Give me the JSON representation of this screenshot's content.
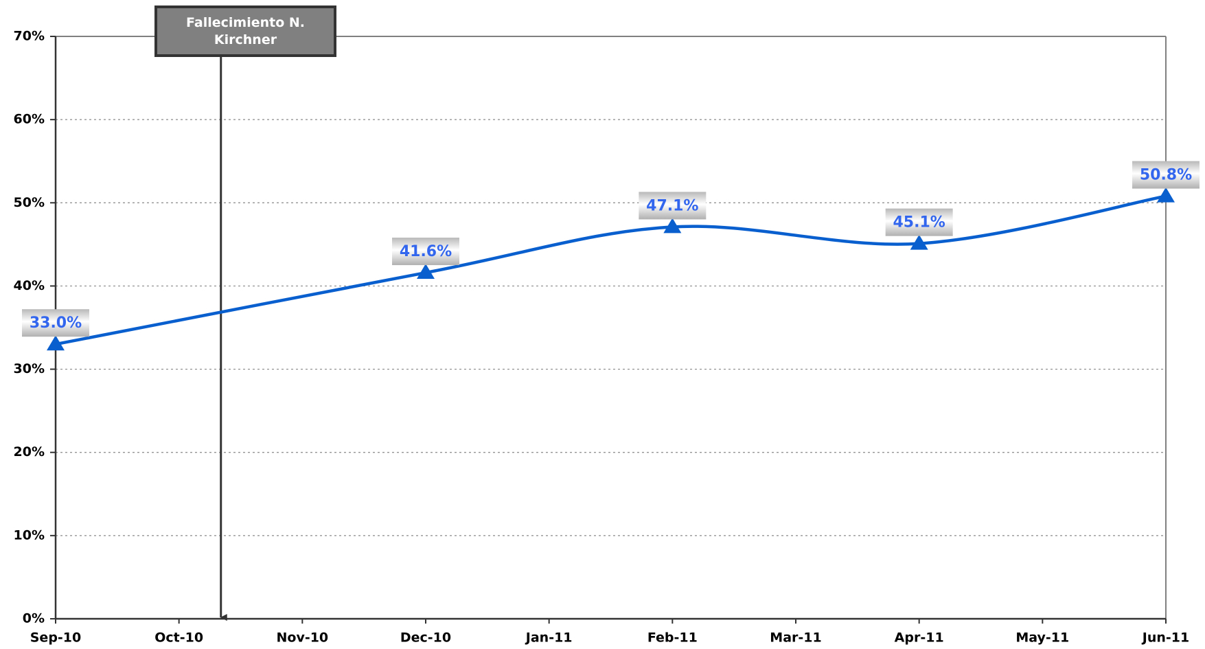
{
  "chart_data": {
    "type": "line",
    "categories": [
      "Sep-10",
      "Oct-10",
      "Nov-10",
      "Dec-10",
      "Jan-11",
      "Feb-11",
      "Mar-11",
      "Apr-11",
      "May-11",
      "Jun-11"
    ],
    "series": [
      {
        "color": "#0a5fcf",
        "x": [
          "Sep-10",
          "Dec-10",
          "Feb-11",
          "Apr-11",
          "Jun-11"
        ],
        "values": [
          33.0,
          41.6,
          47.1,
          45.1,
          50.8
        ],
        "value_labels": [
          "33.0%",
          "41.6%",
          "47.1%",
          "45.1%",
          "50.8%"
        ]
      }
    ],
    "ylim": [
      0,
      70
    ],
    "yticks": [
      {
        "value": 0,
        "label": "0%"
      },
      {
        "value": 10,
        "label": "10%"
      },
      {
        "value": 20,
        "label": "20%"
      },
      {
        "value": 30,
        "label": "30%"
      },
      {
        "value": 40,
        "label": "40%"
      },
      {
        "value": 50,
        "label": "50%"
      },
      {
        "value": 60,
        "label": "60%"
      },
      {
        "value": 70,
        "label": "70%"
      }
    ],
    "grid": true,
    "annotations": [
      {
        "text": "Fallecimiento N. Kirchner"
      }
    ]
  }
}
